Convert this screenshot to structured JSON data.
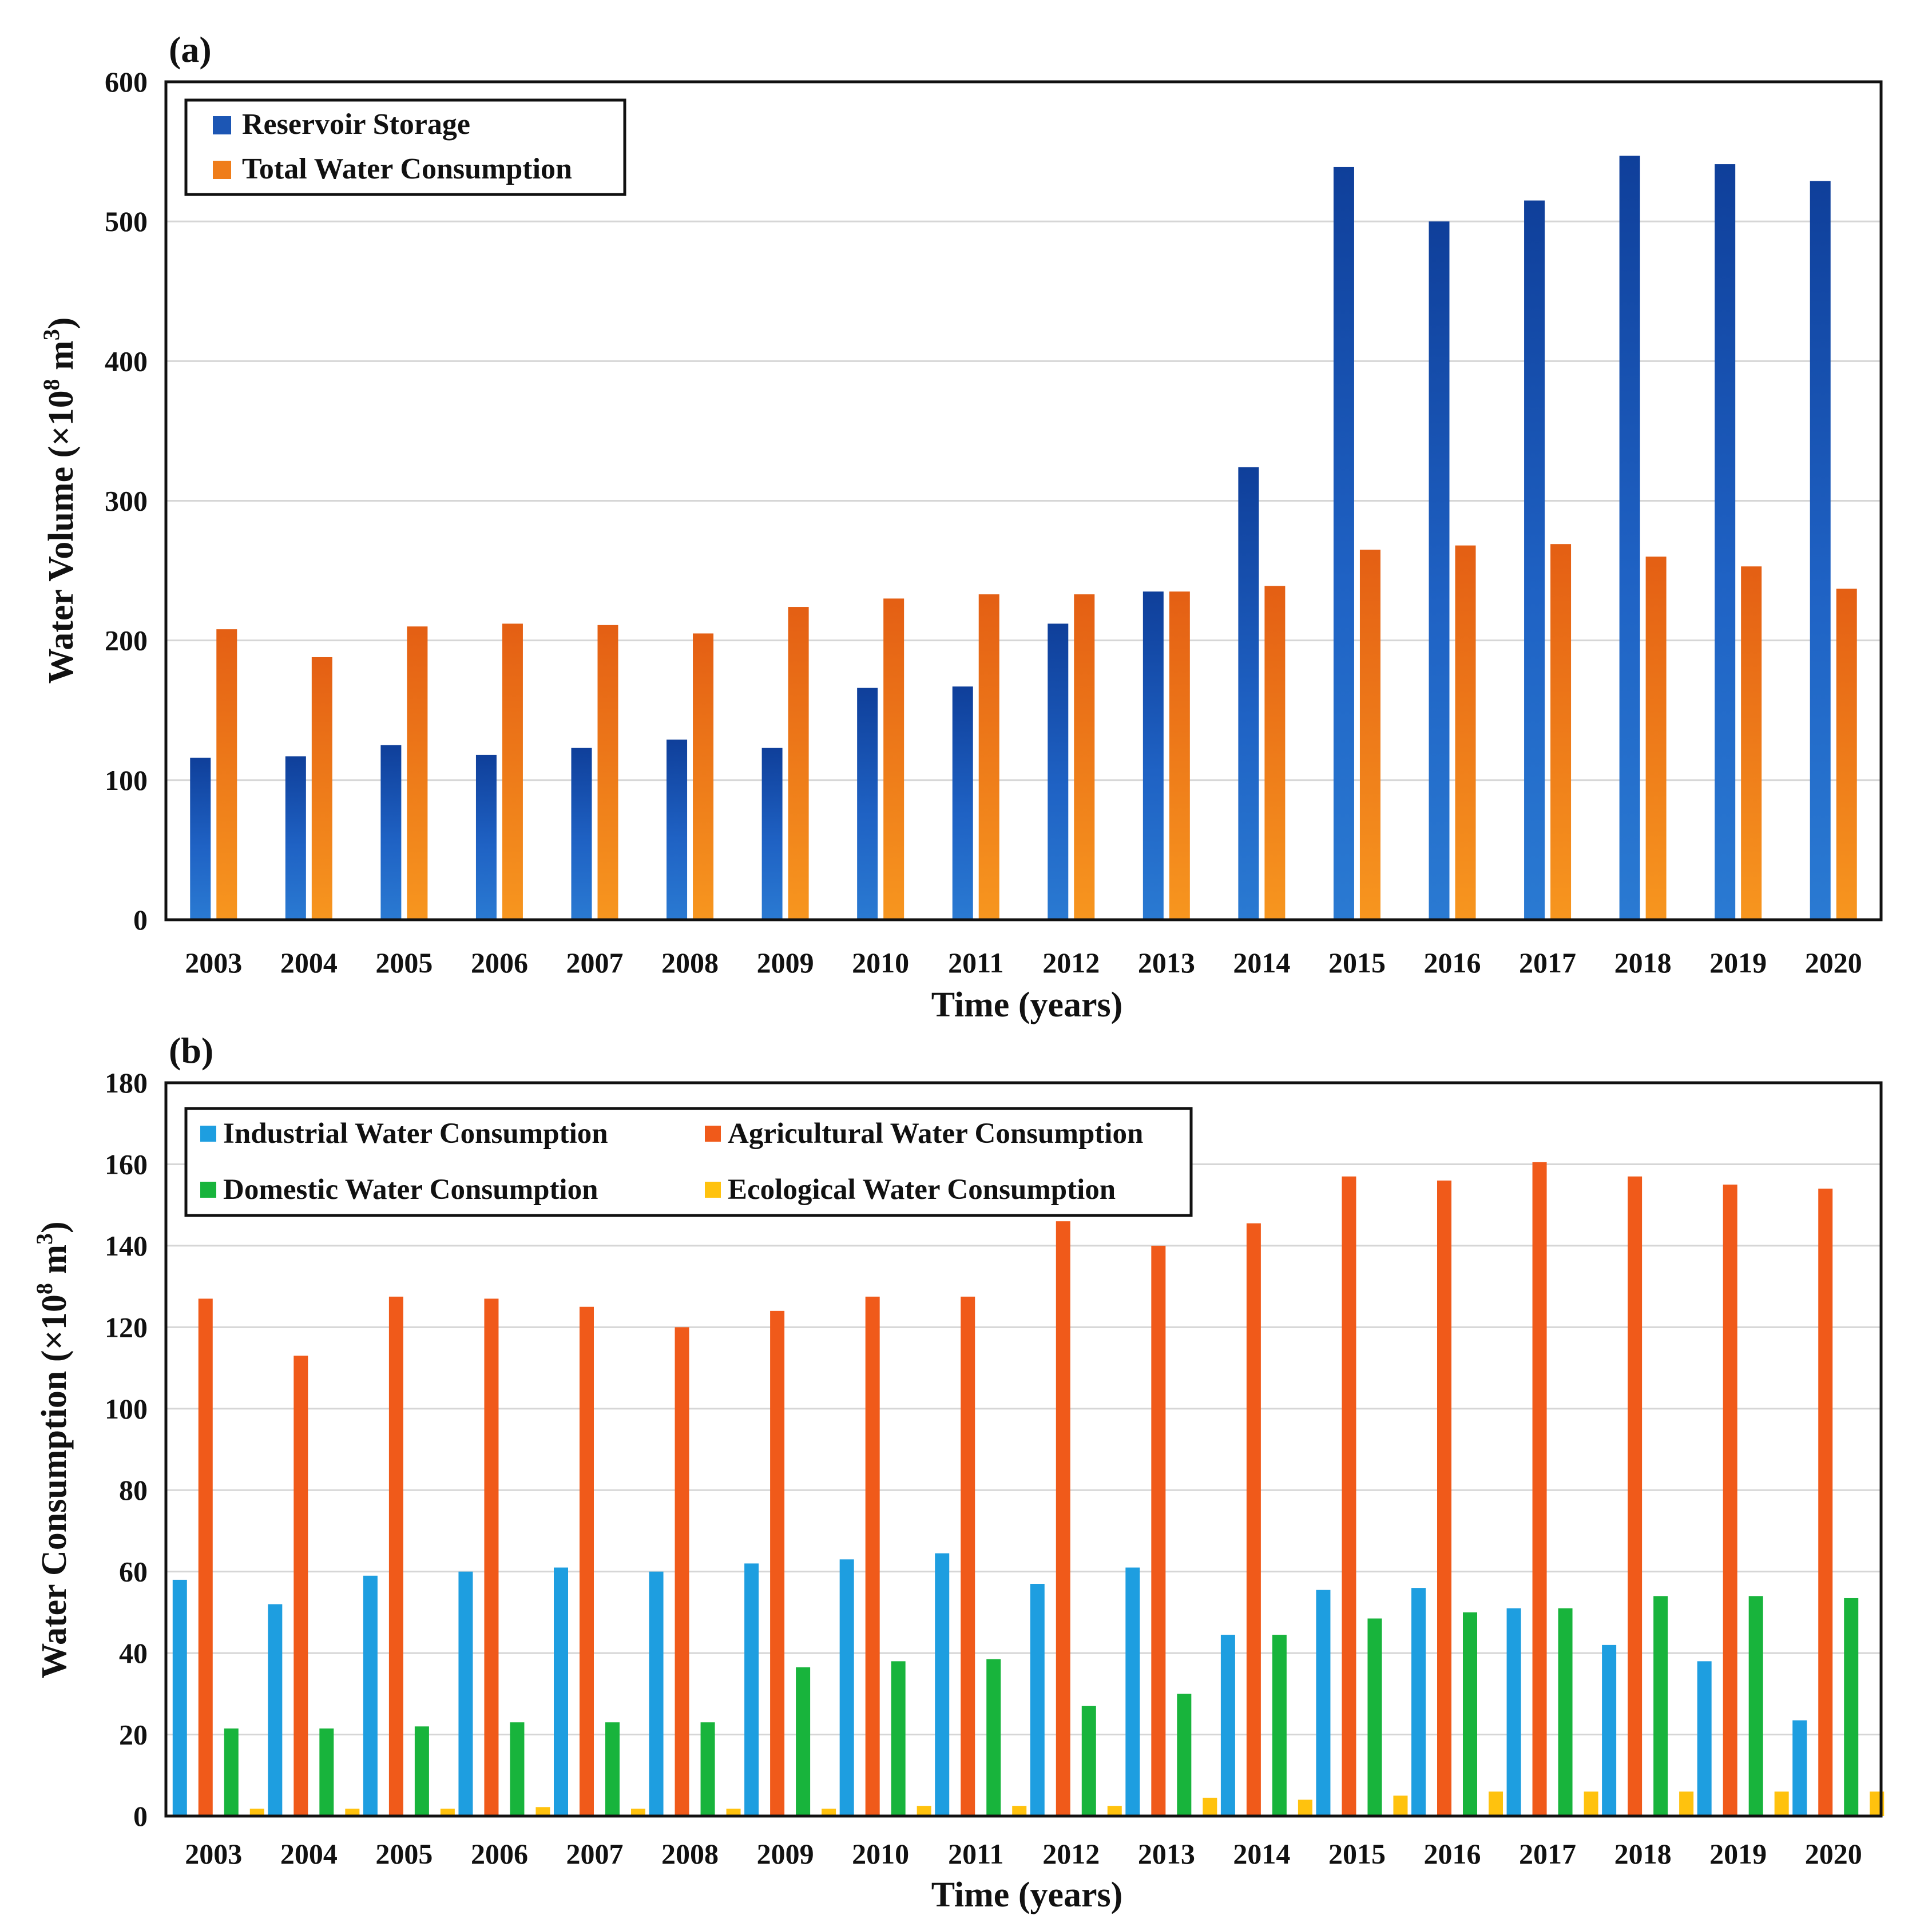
{
  "chart_data": [
    {
      "type": "bar",
      "panel_label": "(a)",
      "categories": [
        "2003",
        "2004",
        "2005",
        "2006",
        "2007",
        "2008",
        "2009",
        "2010",
        "2011",
        "2012",
        "2013",
        "2014",
        "2015",
        "2016",
        "2017",
        "2018",
        "2019",
        "2020"
      ],
      "series": [
        {
          "name": "Reservoir Storage",
          "color": "#1c56b4",
          "values": [
            116,
            117,
            125,
            118,
            123,
            129,
            123,
            166,
            167,
            212,
            235,
            324,
            539,
            500,
            515,
            547,
            541,
            529
          ]
        },
        {
          "name": "Total Water Consumption",
          "color": "#ef7d1a",
          "values": [
            208,
            188,
            210,
            212,
            211,
            205,
            224,
            230,
            233,
            233,
            235,
            239,
            265,
            268,
            269,
            260,
            253,
            237
          ]
        }
      ],
      "xlabel": "Time (years)",
      "ylabel_prefix": "Water Volume (×10",
      "ylabel_exp1": "8",
      "ylabel_mid": " m",
      "ylabel_exp2": "3",
      "ylabel_suffix": ")",
      "ylim": [
        0,
        600
      ],
      "yticks": [
        0,
        100,
        200,
        300,
        400,
        500,
        600
      ],
      "grid": true,
      "legend_position": "top-left"
    },
    {
      "type": "bar",
      "panel_label": "(b)",
      "categories": [
        "2003",
        "2004",
        "2005",
        "2006",
        "2007",
        "2008",
        "2009",
        "2010",
        "2011",
        "2012",
        "2013",
        "2014",
        "2015",
        "2016",
        "2017",
        "2018",
        "2019",
        "2020"
      ],
      "series": [
        {
          "name": "Industrial Water Consumption",
          "color": "#1e9ee0",
          "values": [
            58,
            52,
            59,
            60,
            61,
            60,
            62,
            63,
            64.5,
            57,
            61,
            44.5,
            55.5,
            56,
            51,
            42,
            38,
            23.5
          ]
        },
        {
          "name": "Agricultural Water Consumption",
          "color": "#f05a1a",
          "values": [
            127,
            113,
            127.5,
            127,
            125,
            120,
            124,
            127.5,
            127.5,
            146,
            140,
            145.5,
            157,
            156,
            160.5,
            157,
            155,
            154
          ]
        },
        {
          "name": "Domestic Water Consumption",
          "color": "#18b43c",
          "values": [
            21.5,
            21.5,
            22,
            23,
            23,
            23,
            36.5,
            38,
            38.5,
            27,
            30,
            44.5,
            48.5,
            50,
            51,
            54,
            54,
            53.5
          ]
        },
        {
          "name": "Ecological Water Consumption",
          "color": "#ffc20e",
          "values": [
            1.8,
            1.8,
            1.8,
            2.2,
            1.8,
            1.8,
            1.8,
            2.5,
            2.5,
            2.5,
            4.5,
            4,
            5,
            6,
            6,
            6,
            6,
            6
          ]
        }
      ],
      "xlabel": "Time (years)",
      "ylabel_prefix": "Water Consumption (×10",
      "ylabel_exp1": "8",
      "ylabel_mid": " m",
      "ylabel_exp2": "3",
      "ylabel_suffix": ")",
      "ylim": [
        0,
        180
      ],
      "yticks": [
        0,
        20,
        40,
        60,
        80,
        100,
        120,
        140,
        160,
        180
      ],
      "grid": true,
      "legend_position": "top-left"
    }
  ]
}
